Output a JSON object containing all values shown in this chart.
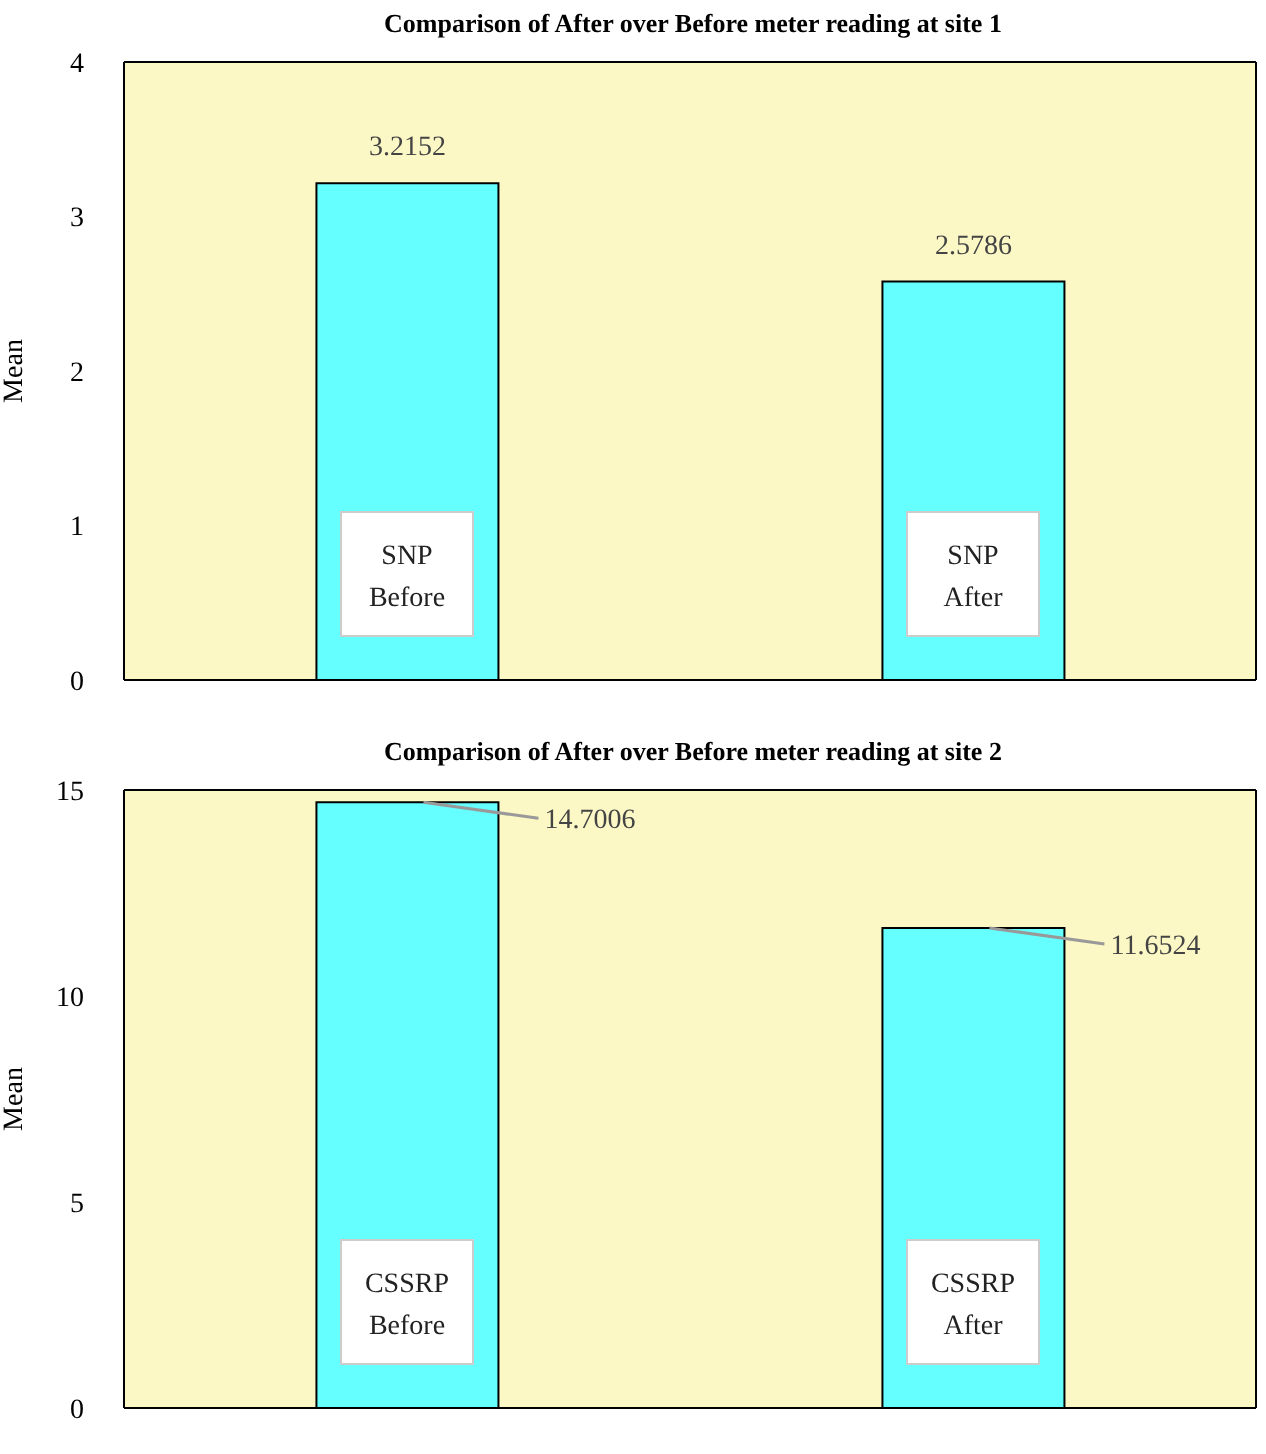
{
  "chart_data": [
    {
      "type": "bar",
      "title": "Comparison of After over Before meter reading at site 1",
      "ylabel": "Mean",
      "categories": [
        "SNP Before",
        "SNP After"
      ],
      "values": [
        3.2152,
        2.5786
      ],
      "color": "#66ffff",
      "ylim": [
        0,
        4
      ],
      "yticks": [
        0,
        1,
        2,
        3,
        4
      ],
      "grid": false,
      "legend": false,
      "data_labels": true
    },
    {
      "type": "bar",
      "title": "Comparison of After over Before meter reading at site 2",
      "ylabel": "Mean",
      "categories": [
        "CSSRP Before",
        "CSSRP After"
      ],
      "values": [
        14.7006,
        11.6524
      ],
      "color": "#66ffff",
      "ylim": [
        0,
        15
      ],
      "yticks": [
        0,
        5,
        10,
        15
      ],
      "grid": false,
      "legend": false,
      "data_labels": true
    }
  ]
}
